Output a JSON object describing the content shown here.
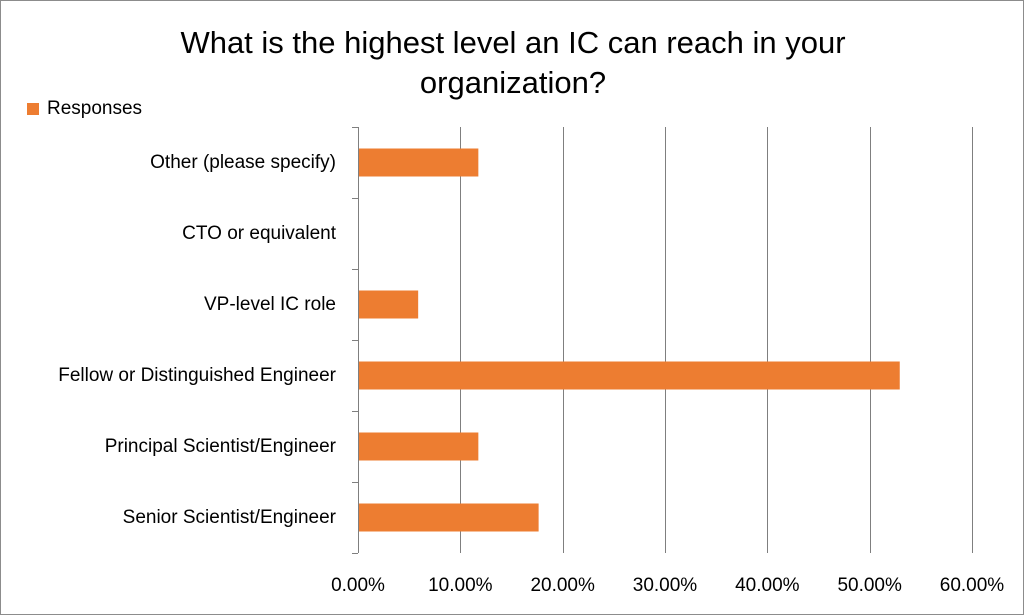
{
  "chart_data": {
    "type": "bar",
    "orientation": "horizontal",
    "title_lines": [
      "What is the highest level an IC can reach in your",
      "organization?"
    ],
    "categories": [
      "Other (please specify)",
      "CTO or equivalent",
      "VP-level IC role",
      "Fellow or Distinguished Engineer",
      "Principal Scientist/Engineer",
      "Senior Scientist/Engineer"
    ],
    "series": [
      {
        "name": "Responses",
        "values": [
          0.1176,
          0,
          0.0588,
          0.5294,
          0.1176,
          0.1765
        ]
      }
    ],
    "xlim": [
      0,
      0.6
    ],
    "x_ticks": [
      0,
      0.1,
      0.2,
      0.3,
      0.4,
      0.5,
      0.6
    ],
    "x_tick_labels": [
      "0.00%",
      "10.00%",
      "20.00%",
      "30.00%",
      "40.00%",
      "50.00%",
      "60.00%"
    ],
    "grid": "vertical-major",
    "legend_position": "top-left",
    "colors": {
      "bar": "#ed7d31",
      "grid": "#7f7f7f",
      "axis": "#7f7f7f",
      "border": "#8c8c8c"
    }
  }
}
